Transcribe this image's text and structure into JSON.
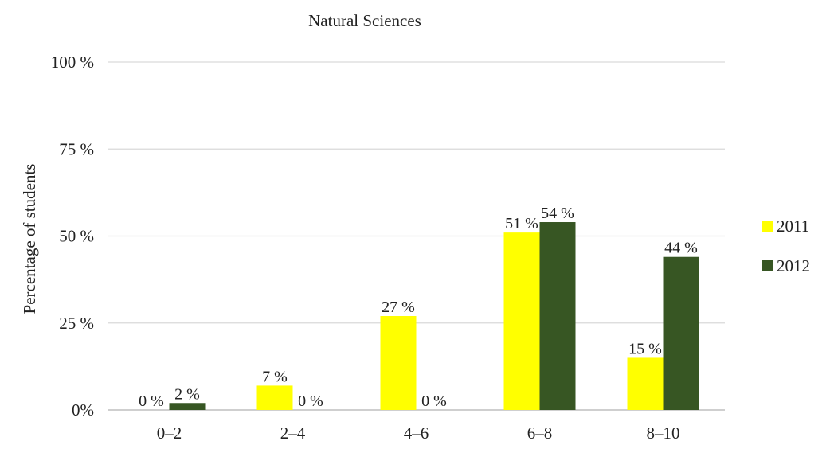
{
  "chart_data": {
    "type": "bar",
    "title": "Natural  Sciences",
    "xlabel": "",
    "ylabel": "Percentage of students",
    "categories": [
      "0–2",
      "2–4",
      "4–6",
      "6–8",
      "8–10"
    ],
    "series": [
      {
        "name": "2011",
        "color": "#ffff00",
        "values": [
          0,
          7,
          27,
          51,
          15
        ],
        "labels": [
          "0 %",
          "7 %",
          "27 %",
          "51 %",
          "15 %"
        ]
      },
      {
        "name": "2012",
        "color": "#375623",
        "values": [
          2,
          0,
          0,
          54,
          44
        ],
        "labels": [
          "2 %",
          "0 %",
          "0 %",
          "54 %",
          "44 %"
        ]
      }
    ],
    "ylim": [
      0,
      100
    ],
    "yticks": [
      {
        "value": 0,
        "label": "0%"
      },
      {
        "value": 25,
        "label": "25 %"
      },
      {
        "value": 50,
        "label": "50 %"
      },
      {
        "value": 75,
        "label": "75 %"
      },
      {
        "value": 100,
        "label": "100 %"
      }
    ],
    "grid": true,
    "legend_position": "right",
    "gridline_color": "#d9d9d9",
    "axis_color": "#bfbfbf"
  }
}
